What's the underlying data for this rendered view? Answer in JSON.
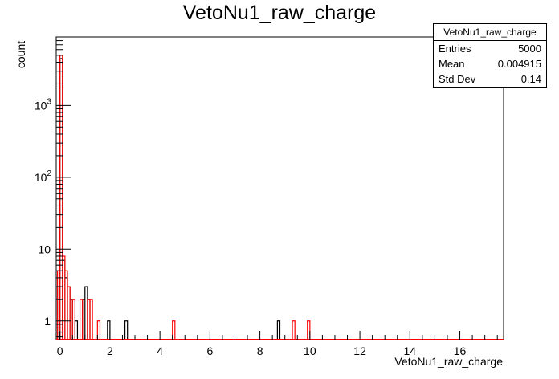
{
  "chart_data": {
    "type": "histogram",
    "title": "VetoNu1_raw_charge",
    "xlabel": "VetoNu1_raw_charge",
    "ylabel": "count",
    "xlim": [
      -0.15,
      17.75
    ],
    "ylim": [
      0.55,
      9000
    ],
    "yscale": "log",
    "x_ticks": [
      "0",
      "2",
      "4",
      "6",
      "8",
      "10",
      "12",
      "14",
      "16"
    ],
    "x_tick_values": [
      0,
      2,
      4,
      6,
      8,
      10,
      12,
      14,
      16
    ],
    "y_ticks": [
      "1",
      "10",
      "10^2",
      "10^3"
    ],
    "y_tick_values": [
      1,
      10,
      100,
      1000
    ],
    "bin_edges_start": -0.1,
    "bin_width": 0.1,
    "series": [
      {
        "color": "#000000",
        "bins": [
          {
            "x": -0.1,
            "count": 3
          },
          {
            "x": 0.0,
            "count": 4500
          },
          {
            "x": 0.1,
            "count": 7
          },
          {
            "x": 0.2,
            "count": 4
          },
          {
            "x": 0.3,
            "count": 3
          },
          {
            "x": 0.4,
            "count": 2
          },
          {
            "x": 0.6,
            "count": 1
          },
          {
            "x": 0.9,
            "count": 2
          },
          {
            "x": 1.0,
            "count": 3
          },
          {
            "x": 1.1,
            "count": 2
          },
          {
            "x": 1.9,
            "count": 1
          },
          {
            "x": 2.6,
            "count": 1
          },
          {
            "x": 8.7,
            "count": 1
          }
        ]
      },
      {
        "color": "#ff0000",
        "bins": [
          {
            "x": -0.1,
            "count": 5
          },
          {
            "x": 0.0,
            "count": 5000
          },
          {
            "x": 0.1,
            "count": 8
          },
          {
            "x": 0.2,
            "count": 5
          },
          {
            "x": 0.3,
            "count": 3
          },
          {
            "x": 0.5,
            "count": 2
          },
          {
            "x": 0.8,
            "count": 2
          },
          {
            "x": 1.1,
            "count": 2
          },
          {
            "x": 1.2,
            "count": 2
          },
          {
            "x": 1.5,
            "count": 1
          },
          {
            "x": 4.5,
            "count": 1
          },
          {
            "x": 9.3,
            "count": 1
          },
          {
            "x": 9.9,
            "count": 1
          }
        ]
      }
    ],
    "stats": {
      "title": "VetoNu1_raw_charge",
      "rows": [
        {
          "label": "Entries",
          "value": "5000"
        },
        {
          "label": "Mean",
          "value": "0.004915"
        },
        {
          "label": "Std Dev",
          "value": "0.14"
        }
      ]
    }
  }
}
